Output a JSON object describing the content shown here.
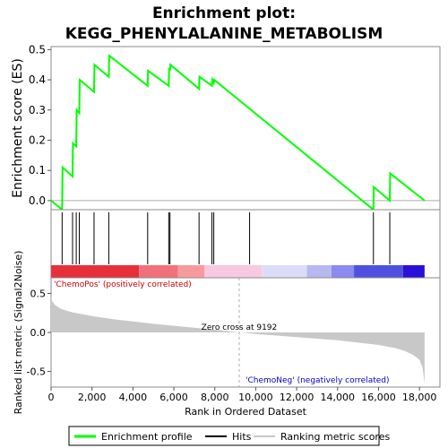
{
  "chart_data": {
    "type": "line",
    "title_line1": "Enrichment plot:",
    "title_line2": "KEGG_PHENYLALANINE_METABOLISM",
    "es_panel": {
      "ylabel": "Enrichment score (ES)",
      "ylim": [
        -0.03,
        0.51
      ],
      "yticks": [
        "0.0",
        "0.1",
        "0.2",
        "0.3",
        "0.4",
        "0.5"
      ],
      "ytick_values": [
        0.0,
        0.1,
        0.2,
        0.3,
        0.4,
        0.5
      ],
      "series": [
        {
          "name": "Enrichment profile",
          "color": "#00ff00",
          "x": [
            0,
            540,
            560,
            1050,
            1070,
            1230,
            1250,
            1380,
            1400,
            2100,
            2120,
            2820,
            2840,
            4720,
            4740,
            5750,
            5770,
            5810,
            5830,
            7230,
            7250,
            7860,
            7880,
            7950,
            7970,
            15750,
            15770,
            16550,
            16570,
            18250
          ],
          "y": [
            0.0,
            -0.03,
            0.11,
            0.08,
            0.19,
            0.18,
            0.3,
            0.29,
            0.4,
            0.36,
            0.45,
            0.41,
            0.48,
            0.38,
            0.43,
            0.38,
            0.44,
            0.43,
            0.45,
            0.37,
            0.41,
            0.38,
            0.4,
            0.39,
            0.4,
            -0.03,
            0.045,
            0.0,
            0.09,
            0.0
          ]
        }
      ]
    },
    "hits_panel": {
      "hit_color": "#000000",
      "hit_positions": [
        540,
        1050,
        1230,
        1380,
        2100,
        2820,
        4720,
        5750,
        5810,
        7230,
        7860,
        7950,
        9700,
        15750,
        16550
      ]
    },
    "ranking_bar": {
      "segments": [
        {
          "from": 0,
          "to": 4300,
          "color": "#e8303a"
        },
        {
          "from": 4300,
          "to": 6200,
          "color": "#f2707a"
        },
        {
          "from": 6200,
          "to": 7500,
          "color": "#f79aa0"
        },
        {
          "from": 7500,
          "to": 10300,
          "color": "#f8c8e0"
        },
        {
          "from": 10300,
          "to": 12500,
          "color": "#dcdcf8"
        },
        {
          "from": 12500,
          "to": 13700,
          "color": "#b8b8f0"
        },
        {
          "from": 13700,
          "to": 14800,
          "color": "#8a8af0"
        },
        {
          "from": 14800,
          "to": 17200,
          "color": "#5050e0"
        },
        {
          "from": 17200,
          "to": 18250,
          "color": "#2a10d8"
        }
      ]
    },
    "metric_panel": {
      "ylabel": "Ranked list metric (Signal2Noise)",
      "xlabel": "Rank in Ordered Dataset",
      "xlim": [
        0,
        19000
      ],
      "ylim": [
        -0.7,
        0.7
      ],
      "yticks": [
        "-0.5",
        "0.0",
        "0.5"
      ],
      "ytick_values": [
        -0.5,
        0.0,
        0.5
      ],
      "xticks": [
        "0",
        "2,000",
        "4,000",
        "6,000",
        "8,000",
        "10,000",
        "12,000",
        "14,000",
        "16,000",
        "18,000"
      ],
      "xtick_values": [
        0,
        2000,
        4000,
        6000,
        8000,
        10000,
        12000,
        14000,
        16000,
        18000
      ],
      "curve_x": [
        0,
        50,
        200,
        500,
        1000,
        2000,
        3000,
        4000,
        5000,
        6000,
        7000,
        8000,
        9192,
        10000,
        11000,
        12000,
        13000,
        14000,
        15000,
        16000,
        16800,
        17300,
        17700,
        18000,
        18150,
        18250
      ],
      "curve_y": [
        0.46,
        0.4,
        0.35,
        0.3,
        0.26,
        0.21,
        0.17,
        0.14,
        0.11,
        0.085,
        0.06,
        0.035,
        0.0,
        -0.02,
        -0.04,
        -0.06,
        -0.08,
        -0.1,
        -0.13,
        -0.16,
        -0.2,
        -0.24,
        -0.29,
        -0.35,
        -0.45,
        -0.65
      ],
      "fill_color": "#c8c8c8",
      "zero_cross_label": "Zero cross at 9192",
      "zero_cross_x": 9192,
      "pos_label": "'ChemoPos' (positively correlated)",
      "pos_color": "#cc0000",
      "neg_label": "'ChemoNeg' (negatively correlated)",
      "neg_color": "#0000cc"
    },
    "legend": {
      "items": [
        {
          "label": "Enrichment profile",
          "color": "#00ff00"
        },
        {
          "label": "Hits",
          "color": "#000000"
        },
        {
          "label": "Ranking metric scores",
          "color": "#c8c8c8"
        }
      ]
    }
  }
}
